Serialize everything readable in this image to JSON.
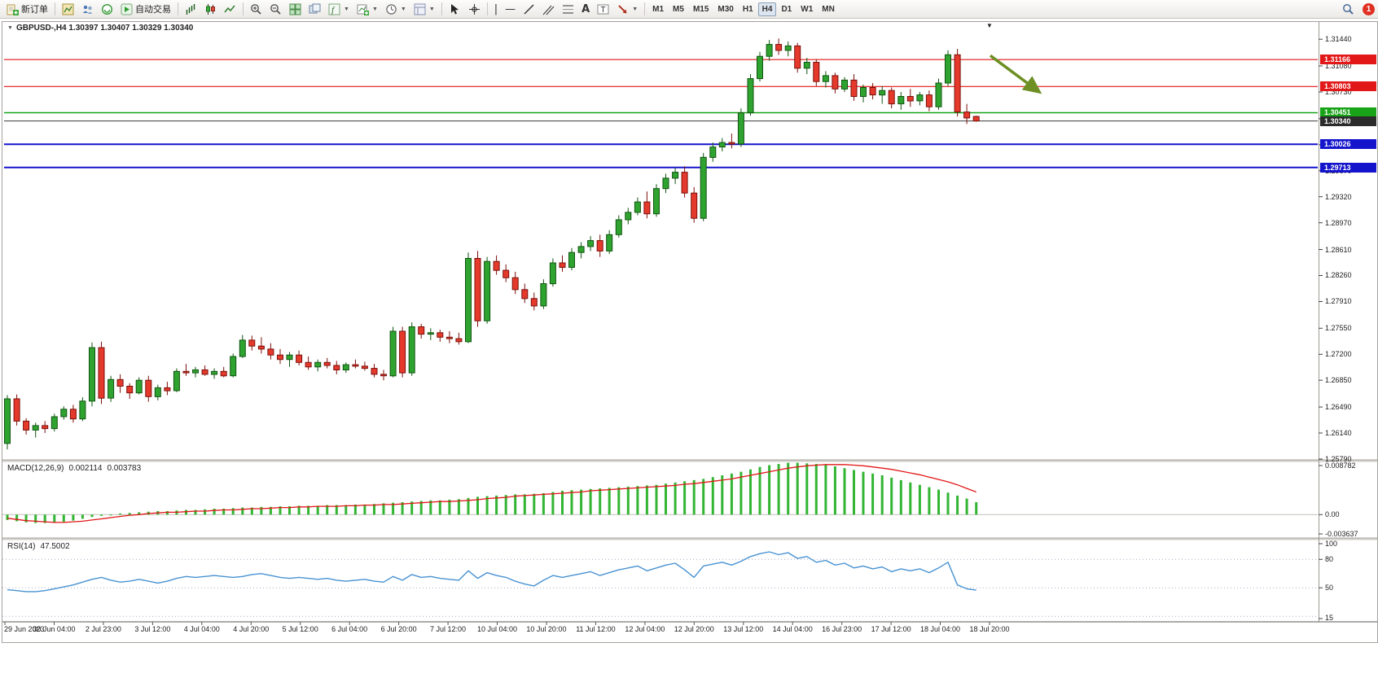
{
  "toolbar": {
    "new_order_label": "新订单",
    "auto_trading_label": "自动交易",
    "timeframes": {
      "items": [
        "M1",
        "M5",
        "M15",
        "M30",
        "H1",
        "H4",
        "D1",
        "W1",
        "MN"
      ],
      "active": "H4"
    },
    "notification_count": "1"
  },
  "chart": {
    "symbol_line": "GBPUSD-,H4 1.30397 1.30407 1.30329 1.30340",
    "price_scale": [
      "1.31440",
      "1.31080",
      "1.30730",
      "1.30370",
      "1.30020",
      "1.29670",
      "1.29320",
      "1.28970",
      "1.28610",
      "1.28260",
      "1.27910",
      "1.27550",
      "1.27200",
      "1.26850",
      "1.26490",
      "1.26140",
      "1.25790"
    ],
    "hlines": [
      {
        "label": "1.31166",
        "price": 1.31166,
        "color": "#e21717",
        "width": 1.2
      },
      {
        "label": "1.30803",
        "price": 1.30803,
        "color": "#e21717",
        "width": 1.2
      },
      {
        "label": "1.30451",
        "price": 1.30451,
        "color": "#18a318",
        "width": 1.5
      },
      {
        "label": "1.30026",
        "price": 1.30026,
        "color": "#1414cd",
        "width": 2
      },
      {
        "label": "1.29713",
        "price": 1.29713,
        "color": "#1414cd",
        "width": 2
      }
    ],
    "current_price": {
      "label": "1.30340",
      "price": 1.3034,
      "line_color": "#3c3c3c",
      "tag_color": "#2b2b2b"
    },
    "annotations": [
      {
        "type": "arrow",
        "from": {
          "index": 104.5,
          "price": 1.3122
        },
        "to": {
          "index": 109.5,
          "price": 1.3075
        },
        "color": "#6d8f23"
      }
    ]
  },
  "macd": {
    "title": "MACD(12,26,9)",
    "value_main": "0.002114",
    "value_signal": "0.003783",
    "scale": [
      {
        "v": 0.008782,
        "label": "0.008782"
      },
      {
        "v": 0,
        "label": "0.00"
      },
      {
        "v": -0.003637,
        "label": "-0.003637"
      }
    ]
  },
  "rsi": {
    "title": "RSI(14)",
    "value": "47.5002",
    "scale": [
      {
        "v": 100,
        "label": "100"
      },
      {
        "v": 80,
        "label": "80"
      },
      {
        "v": 50,
        "label": "50"
      },
      {
        "v": 15,
        "label": "15"
      }
    ],
    "levels": [
      80,
      50,
      20
    ]
  },
  "time_axis": [
    "29 Jun 2023",
    "30 Jun 04:00",
    "2 Jul 23:00",
    "3 Jul 12:00",
    "4 Jul 04:00",
    "4 Jul 20:00",
    "5 Jul 12:00",
    "6 Jul 04:00",
    "6 Jul 20:00",
    "7 Jul 12:00",
    "10 Jul 04:00",
    "10 Jul 20:00",
    "11 Jul 12:00",
    "12 Jul 04:00",
    "12 Jul 20:00",
    "13 Jul 12:00",
    "14 Jul 04:00",
    "16 Jul 23:00",
    "17 Jul 12:00",
    "18 Jul 04:00",
    "18 Jul 20:00"
  ],
  "chart_data": {
    "type": "candlestick",
    "symbol": "GBPUSD-",
    "timeframe": "H4",
    "price_base": 1.2,
    "pip": 0.0001,
    "ylim": [
      1.2579,
      1.3165
    ],
    "up_color": "#2fa32f",
    "down_color": "#e5392c",
    "ohlc_pips": [
      [
        600,
        665,
        592,
        660
      ],
      [
        660,
        666,
        624,
        630
      ],
      [
        630,
        634,
        612,
        618
      ],
      [
        618,
        628,
        608,
        624
      ],
      [
        624,
        630,
        614,
        620
      ],
      [
        620,
        640,
        616,
        636
      ],
      [
        636,
        650,
        632,
        646
      ],
      [
        646,
        652,
        628,
        633
      ],
      [
        633,
        662,
        630,
        657
      ],
      [
        657,
        736,
        650,
        729
      ],
      [
        729,
        737,
        653,
        661
      ],
      [
        661,
        691,
        656,
        686
      ],
      [
        686,
        693,
        668,
        677
      ],
      [
        677,
        681,
        660,
        668
      ],
      [
        668,
        689,
        666,
        685
      ],
      [
        685,
        691,
        656,
        663
      ],
      [
        663,
        679,
        658,
        675
      ],
      [
        675,
        683,
        665,
        671
      ],
      [
        671,
        701,
        669,
        697
      ],
      [
        697,
        707,
        691,
        695
      ],
      [
        695,
        703,
        689,
        699
      ],
      [
        699,
        705,
        691,
        693
      ],
      [
        693,
        701,
        687,
        697
      ],
      [
        697,
        703,
        689,
        691
      ],
      [
        691,
        721,
        689,
        717
      ],
      [
        717,
        746,
        715,
        739
      ],
      [
        739,
        745,
        725,
        731
      ],
      [
        731,
        743,
        721,
        727
      ],
      [
        727,
        735,
        713,
        719
      ],
      [
        719,
        727,
        707,
        713
      ],
      [
        713,
        723,
        703,
        719
      ],
      [
        719,
        725,
        705,
        709
      ],
      [
        709,
        717,
        699,
        703
      ],
      [
        703,
        713,
        697,
        709
      ],
      [
        709,
        715,
        701,
        705
      ],
      [
        705,
        711,
        693,
        699
      ],
      [
        699,
        709,
        695,
        706
      ],
      [
        706,
        713,
        701,
        704
      ],
      [
        704,
        710,
        698,
        701
      ],
      [
        701,
        707,
        689,
        693
      ],
      [
        693,
        699,
        685,
        691
      ],
      [
        691,
        757,
        689,
        751
      ],
      [
        751,
        757,
        689,
        695
      ],
      [
        695,
        763,
        691,
        757
      ],
      [
        757,
        761,
        741,
        747
      ],
      [
        747,
        755,
        739,
        749
      ],
      [
        749,
        753,
        737,
        743
      ],
      [
        743,
        751,
        735,
        741
      ],
      [
        741,
        749,
        733,
        737
      ],
      [
        737,
        857,
        735,
        849
      ],
      [
        849,
        859,
        757,
        765
      ],
      [
        765,
        851,
        761,
        845
      ],
      [
        845,
        853,
        827,
        833
      ],
      [
        833,
        841,
        817,
        823
      ],
      [
        823,
        831,
        801,
        807
      ],
      [
        807,
        815,
        789,
        795
      ],
      [
        795,
        803,
        779,
        785
      ],
      [
        785,
        821,
        781,
        815
      ],
      [
        815,
        849,
        811,
        843
      ],
      [
        843,
        853,
        831,
        837
      ],
      [
        837,
        863,
        833,
        857
      ],
      [
        857,
        871,
        849,
        865
      ],
      [
        865,
        879,
        859,
        873
      ],
      [
        873,
        881,
        851,
        859
      ],
      [
        859,
        887,
        855,
        881
      ],
      [
        881,
        907,
        877,
        901
      ],
      [
        901,
        917,
        895,
        911
      ],
      [
        911,
        931,
        907,
        925
      ],
      [
        925,
        939,
        903,
        909
      ],
      [
        909,
        949,
        905,
        943
      ],
      [
        943,
        963,
        937,
        957
      ],
      [
        957,
        971,
        949,
        965
      ],
      [
        965,
        973,
        931,
        937
      ],
      [
        937,
        945,
        897,
        903
      ],
      [
        903,
        991,
        899,
        985
      ],
      [
        985,
        1005,
        979,
        999
      ],
      [
        999,
        1011,
        993,
        1005
      ],
      [
        1005,
        1017,
        997,
        1003
      ],
      [
        1003,
        1051,
        999,
        1045
      ],
      [
        1045,
        1097,
        1041,
        1091
      ],
      [
        1091,
        1127,
        1087,
        1121
      ],
      [
        1121,
        1143,
        1115,
        1137
      ],
      [
        1137,
        1145,
        1123,
        1129
      ],
      [
        1129,
        1141,
        1121,
        1135
      ],
      [
        1135,
        1139,
        1099,
        1105
      ],
      [
        1105,
        1119,
        1097,
        1113
      ],
      [
        1113,
        1117,
        1081,
        1087
      ],
      [
        1087,
        1101,
        1079,
        1095
      ],
      [
        1095,
        1099,
        1071,
        1077
      ],
      [
        1077,
        1093,
        1073,
        1089
      ],
      [
        1089,
        1097,
        1061,
        1067
      ],
      [
        1067,
        1083,
        1059,
        1079
      ],
      [
        1079,
        1085,
        1063,
        1069
      ],
      [
        1069,
        1081,
        1057,
        1075
      ],
      [
        1075,
        1079,
        1051,
        1057
      ],
      [
        1057,
        1073,
        1049,
        1067
      ],
      [
        1067,
        1077,
        1053,
        1061
      ],
      [
        1061,
        1073,
        1055,
        1069
      ],
      [
        1069,
        1075,
        1047,
        1053
      ],
      [
        1053,
        1091,
        1049,
        1085
      ],
      [
        1085,
        1129,
        1081,
        1123
      ],
      [
        1123,
        1131,
        1040,
        1046
      ],
      [
        1046,
        1057,
        1030,
        1038
      ],
      [
        1040,
        1041,
        1033,
        1034
      ]
    ],
    "indicators": {
      "macd": {
        "params": [
          12,
          26,
          9
        ],
        "ylim": [
          -0.003637,
          0.008782
        ],
        "histogram": [
          -0.0009,
          -0.0011,
          -0.0013,
          -0.0014,
          -0.0014,
          -0.0013,
          -0.0012,
          -0.001,
          -0.0007,
          -0.0004,
          -0.0002,
          0.0,
          0.0002,
          0.0003,
          0.0004,
          0.0005,
          0.0006,
          0.0006,
          0.0007,
          0.0008,
          0.0008,
          0.0009,
          0.001,
          0.001,
          0.0011,
          0.0012,
          0.0012,
          0.0013,
          0.0013,
          0.0014,
          0.0014,
          0.0015,
          0.0015,
          0.0015,
          0.0016,
          0.0016,
          0.0016,
          0.0017,
          0.0017,
          0.0018,
          0.0019,
          0.002,
          0.0021,
          0.0022,
          0.0023,
          0.0024,
          0.0024,
          0.0025,
          0.0026,
          0.0028,
          0.003,
          0.0031,
          0.0032,
          0.0033,
          0.0034,
          0.0034,
          0.0035,
          0.0036,
          0.0038,
          0.004,
          0.0041,
          0.0042,
          0.0043,
          0.0044,
          0.0045,
          0.0046,
          0.0047,
          0.0048,
          0.0049,
          0.005,
          0.0052,
          0.0054,
          0.0056,
          0.0058,
          0.006,
          0.0063,
          0.0066,
          0.0069,
          0.0072,
          0.0076,
          0.008,
          0.0083,
          0.0085,
          0.0087,
          0.0087,
          0.0086,
          0.0085,
          0.0083,
          0.0081,
          0.0078,
          0.0075,
          0.0072,
          0.0069,
          0.0066,
          0.0062,
          0.0058,
          0.0054,
          0.005,
          0.0046,
          0.0042,
          0.0037,
          0.0032,
          0.0027,
          0.0021
        ],
        "signal": [
          -0.0006,
          -0.0008,
          -0.001,
          -0.0011,
          -0.0012,
          -0.0013,
          -0.0013,
          -0.0012,
          -0.0011,
          -0.0009,
          -0.0007,
          -0.0005,
          -0.0003,
          -0.0001,
          0.0,
          0.0002,
          0.0003,
          0.0004,
          0.0004,
          0.0005,
          0.0006,
          0.0006,
          0.0007,
          0.0008,
          0.0008,
          0.0009,
          0.001,
          0.001,
          0.0011,
          0.0012,
          0.0012,
          0.0013,
          0.0013,
          0.0014,
          0.0014,
          0.0014,
          0.0015,
          0.0015,
          0.0016,
          0.0016,
          0.0017,
          0.0017,
          0.0018,
          0.0019,
          0.002,
          0.0021,
          0.0022,
          0.0022,
          0.0023,
          0.0024,
          0.0025,
          0.0027,
          0.0028,
          0.0029,
          0.0031,
          0.0032,
          0.0033,
          0.0034,
          0.0035,
          0.0036,
          0.0037,
          0.0038,
          0.004,
          0.0041,
          0.0042,
          0.0043,
          0.0044,
          0.0045,
          0.0046,
          0.0047,
          0.0048,
          0.0049,
          0.0051,
          0.0052,
          0.0054,
          0.0056,
          0.0058,
          0.006,
          0.0063,
          0.0066,
          0.0069,
          0.0072,
          0.0075,
          0.0078,
          0.008,
          0.0082,
          0.0083,
          0.0084,
          0.0084,
          0.0084,
          0.0083,
          0.0082,
          0.008,
          0.0078,
          0.0076,
          0.0073,
          0.007,
          0.0067,
          0.0063,
          0.0059,
          0.0055,
          0.005,
          0.0044,
          0.0038
        ],
        "histogram_color": "#33b533",
        "signal_color": "#e21717"
      },
      "rsi": {
        "period": 14,
        "ylim": [
          15,
          100
        ],
        "color": "#4892d2",
        "values": [
          48,
          47,
          46,
          46,
          47,
          49,
          51,
          53,
          56,
          59,
          61,
          58,
          56,
          57,
          59,
          57,
          55,
          57,
          60,
          62,
          61,
          62,
          63,
          62,
          61,
          62,
          64,
          65,
          63,
          61,
          60,
          61,
          60,
          59,
          60,
          58,
          57,
          58,
          59,
          57,
          56,
          62,
          58,
          64,
          61,
          62,
          60,
          59,
          58,
          68,
          60,
          66,
          63,
          61,
          57,
          54,
          52,
          58,
          63,
          61,
          63,
          65,
          67,
          63,
          66,
          69,
          71,
          73,
          68,
          71,
          74,
          76,
          69,
          61,
          73,
          75,
          77,
          74,
          78,
          83,
          86,
          88,
          85,
          87,
          81,
          83,
          77,
          79,
          74,
          76,
          71,
          73,
          70,
          72,
          67,
          70,
          68,
          70,
          66,
          71,
          77,
          53,
          49,
          47.5
        ]
      }
    }
  }
}
